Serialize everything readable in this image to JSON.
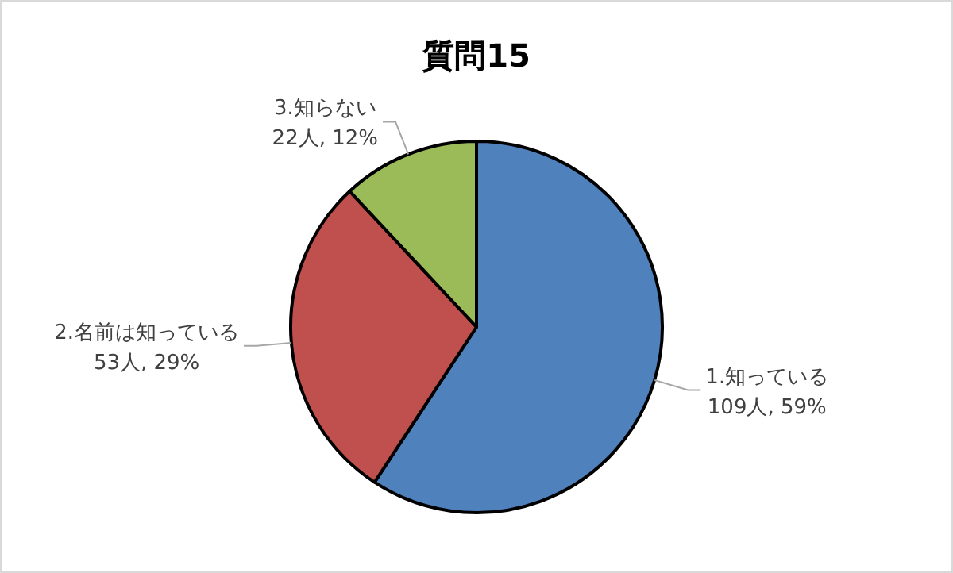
{
  "chart_data": {
    "type": "pie",
    "title": "質問15",
    "categories": [
      "1.知っている",
      "2.名前は知っている",
      "3.知らない"
    ],
    "values": [
      109,
      53,
      22
    ],
    "colors": [
      "#4f81bd",
      "#c0504d",
      "#9bbb59"
    ],
    "value_labels": [
      "109人, 59%",
      "53人, 29%",
      "22人, 12%"
    ]
  }
}
